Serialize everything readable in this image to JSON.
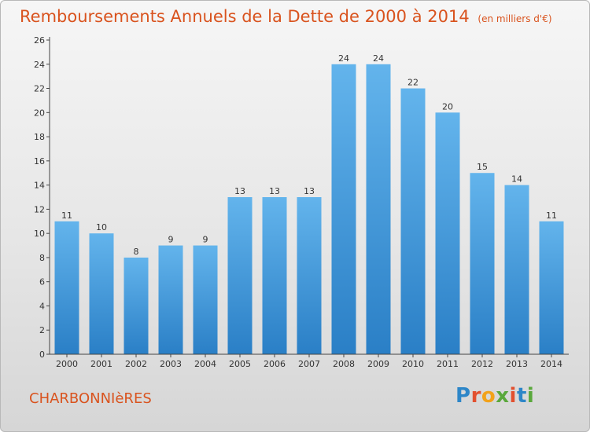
{
  "header": {
    "title": "Remboursements Annuels de la Dette de 2000 à 2014",
    "unit": "(en milliers d'€)"
  },
  "footer": {
    "commune": "CHARBONNIèRES",
    "logo_text": "Proxiti"
  },
  "chart_data": {
    "type": "bar",
    "title": "Remboursements Annuels de la Dette de 2000 à 2014",
    "subtitle": "(en milliers d'€)",
    "categories": [
      "2000",
      "2001",
      "2002",
      "2003",
      "2004",
      "2005",
      "2006",
      "2007",
      "2008",
      "2009",
      "2010",
      "2011",
      "2012",
      "2013",
      "2014"
    ],
    "values": [
      11,
      10,
      8,
      9,
      9,
      13,
      13,
      13,
      24,
      24,
      22,
      20,
      15,
      14,
      11
    ],
    "ylim": [
      0,
      26
    ],
    "yticks": [
      0,
      2,
      4,
      6,
      8,
      10,
      12,
      14,
      16,
      18,
      20,
      22,
      24,
      26
    ],
    "grid": false,
    "legend": "none",
    "colors": {
      "bar_light": "#63b4ec",
      "bar_dark": "#2a7fc6",
      "axis": "#444444",
      "title": "#d9531e"
    }
  },
  "colors": {
    "accent": "#d9531e"
  }
}
